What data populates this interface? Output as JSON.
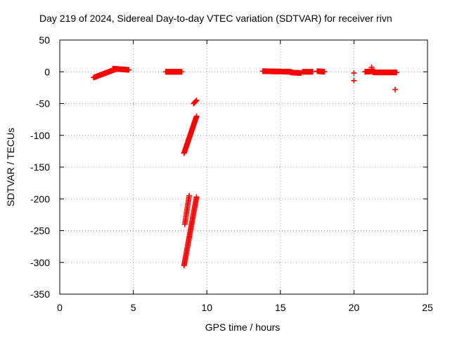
{
  "chart_data": {
    "type": "scatter",
    "title": "Day 219 of 2024, Sidereal Day-to-day VTEC variation (SDTVAR) for receiver rivn",
    "xlabel": "GPS time / hours",
    "ylabel": "SDTVAR / TECUs",
    "xlim": [
      0,
      25
    ],
    "ylim": [
      -350,
      50
    ],
    "xticks": [
      0,
      5,
      10,
      15,
      20,
      25
    ],
    "yticks": [
      -350,
      -300,
      -250,
      -200,
      -150,
      -100,
      -50,
      0,
      50
    ],
    "grid": true,
    "legend": "none",
    "marker": "plus",
    "color": "#ff0000",
    "segments": [
      {
        "x_start": 2.3,
        "x_end": 3.8,
        "y_start": -9,
        "y_end": 4,
        "n": 40
      },
      {
        "x_start": 3.6,
        "x_end": 4.7,
        "y_start": 5,
        "y_end": 3,
        "n": 30
      },
      {
        "x_start": 7.2,
        "x_end": 8.3,
        "y_start": 0,
        "y_end": 0,
        "n": 35
      },
      {
        "x_start": 8.45,
        "x_end": 9.3,
        "y_start": -128,
        "y_end": -70,
        "n": 45
      },
      {
        "x_start": 9.1,
        "x_end": 9.3,
        "y_start": -50,
        "y_end": -45,
        "n": 5
      },
      {
        "x_start": 8.5,
        "x_end": 8.8,
        "y_start": -240,
        "y_end": -195,
        "n": 20
      },
      {
        "x_start": 8.45,
        "x_end": 9.3,
        "y_start": -305,
        "y_end": -197,
        "n": 55
      },
      {
        "x_start": 13.8,
        "x_end": 15.7,
        "y_start": 1,
        "y_end": 0,
        "n": 50
      },
      {
        "x_start": 15.7,
        "x_end": 16.4,
        "y_start": -1,
        "y_end": -2,
        "n": 20
      },
      {
        "x_start": 16.5,
        "x_end": 17.2,
        "y_start": 0,
        "y_end": 0,
        "n": 15
      },
      {
        "x_start": 17.5,
        "x_end": 18.0,
        "y_start": 1,
        "y_end": 0,
        "n": 12
      },
      {
        "x_start": 20.75,
        "x_end": 21.4,
        "y_start": 0,
        "y_end": 1,
        "n": 20
      },
      {
        "x_start": 21.3,
        "x_end": 22.9,
        "y_start": -1,
        "y_end": -1,
        "n": 40
      }
    ],
    "isolated_points": [
      {
        "x": 20.0,
        "y": -2
      },
      {
        "x": 20.0,
        "y": -14
      },
      {
        "x": 21.2,
        "y": 7
      },
      {
        "x": 22.8,
        "y": -28
      }
    ]
  }
}
